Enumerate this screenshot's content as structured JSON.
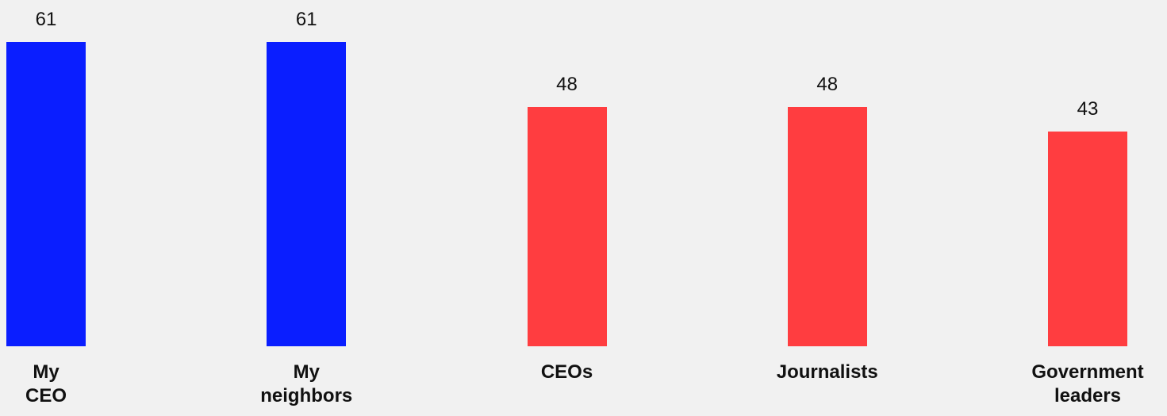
{
  "chart_data": {
    "type": "bar",
    "categories": [
      "My CEO",
      "My neighbors",
      "CEOs",
      "Journalists",
      "Government leaders"
    ],
    "values": [
      61,
      61,
      48,
      48,
      43
    ],
    "colors": [
      "#0a1eff",
      "#0a1eff",
      "#ff3d40",
      "#ff3d40",
      "#ff3d40"
    ]
  }
}
